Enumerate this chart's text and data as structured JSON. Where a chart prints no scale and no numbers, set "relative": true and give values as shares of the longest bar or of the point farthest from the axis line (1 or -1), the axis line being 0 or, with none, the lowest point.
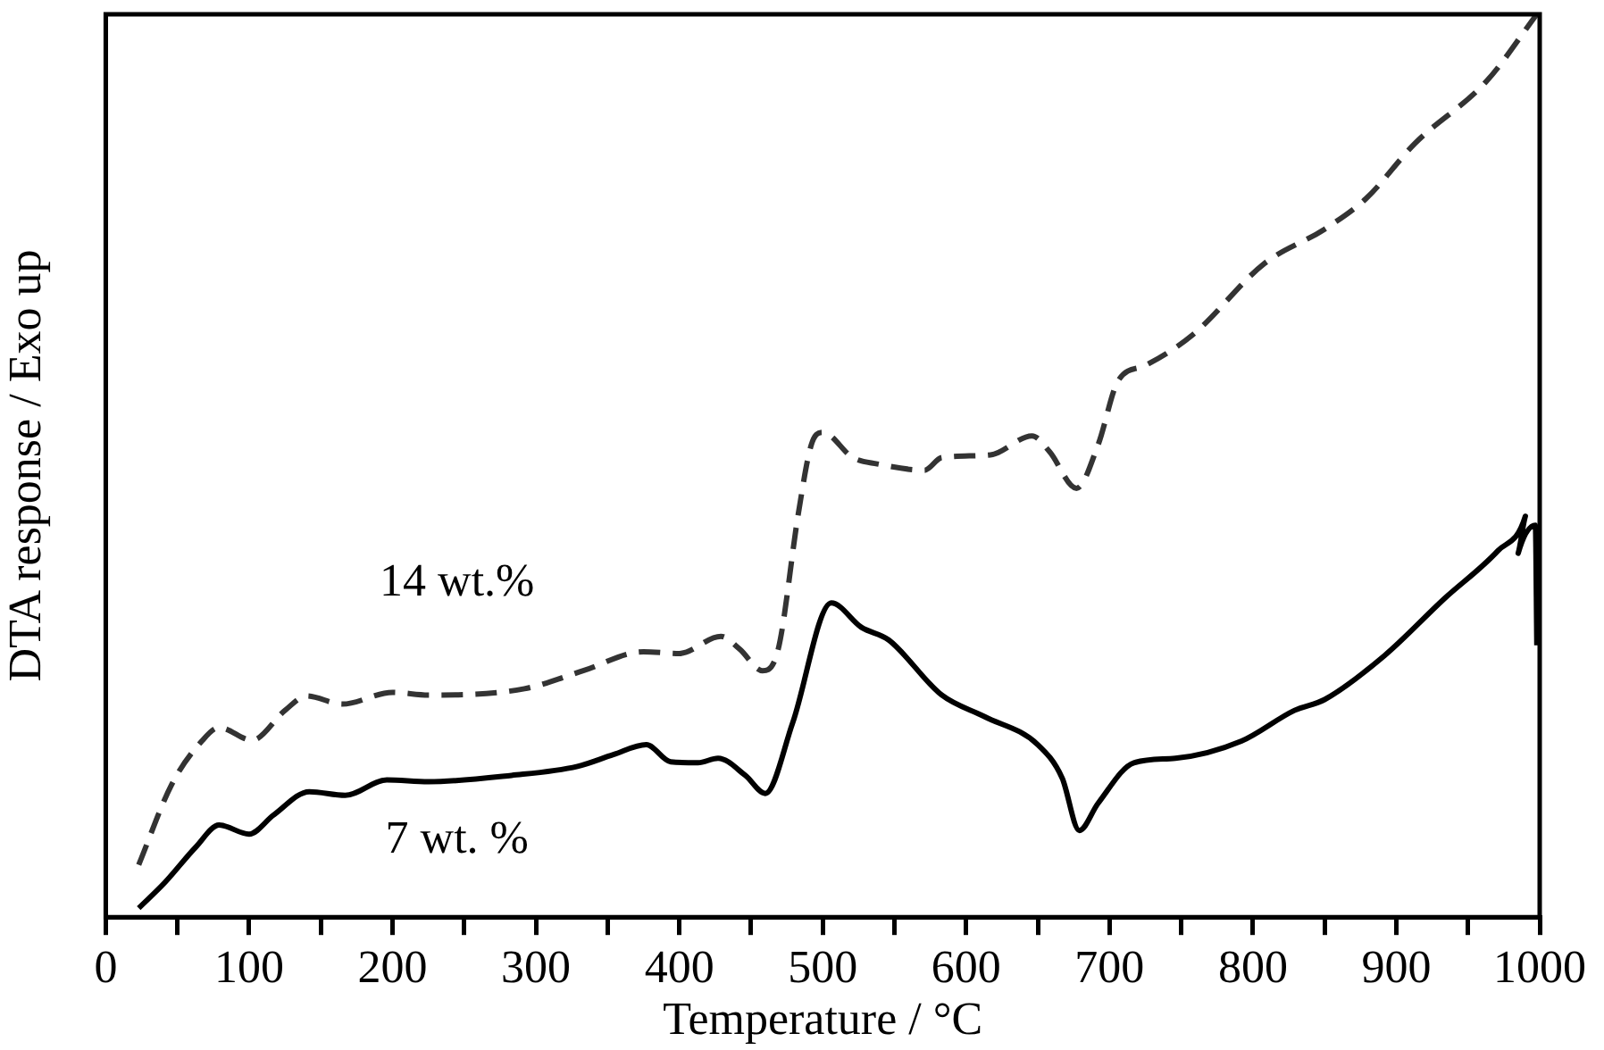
{
  "chart_data": {
    "type": "line",
    "xlabel": "Temperature / °C",
    "ylabel": "DTA response / Exo up",
    "relative": true,
    "xlim": [
      0,
      1000
    ],
    "xticks": [
      0,
      {
        "value": 50,
        "label": null
      },
      100,
      {
        "value": 150,
        "label": null
      },
      200,
      {
        "value": 250,
        "label": null
      },
      300,
      {
        "value": 350,
        "label": null
      },
      400,
      {
        "value": 450,
        "label": null
      },
      500,
      {
        "value": 550,
        "label": null
      },
      600,
      {
        "value": 650,
        "label": null
      },
      700,
      {
        "value": 750,
        "label": null
      },
      800,
      {
        "value": 850,
        "label": null
      },
      900,
      {
        "value": 950,
        "label": null
      },
      1000
    ],
    "grid": false,
    "legend": false,
    "marker": "none",
    "series": [
      {
        "name": "14 wt.%",
        "color": "#333333",
        "line_style": "dashed",
        "x": [
          23,
          46,
          67,
          79,
          102,
          125,
          140,
          165,
          200,
          225,
          292,
          333,
          375,
          400,
          429,
          442,
          458,
          469,
          483,
          492,
          500,
          521,
          538,
          571,
          583,
          617,
          646,
          658,
          677,
          692,
          706,
          725,
          758,
          808,
          850,
          879,
          913,
          963,
          998
        ],
        "values": [
          0.058,
          0.147,
          0.195,
          0.21,
          0.196,
          0.229,
          0.245,
          0.236,
          0.249,
          0.246,
          0.253,
          0.273,
          0.294,
          0.292,
          0.311,
          0.297,
          0.273,
          0.297,
          0.447,
          0.523,
          0.537,
          0.509,
          0.502,
          0.495,
          0.509,
          0.512,
          0.533,
          0.516,
          0.475,
          0.523,
          0.594,
          0.611,
          0.645,
          0.724,
          0.762,
          0.796,
          0.857,
          0.926,
          1.0
        ]
      },
      {
        "name": "7 wt. %",
        "color": "#000000",
        "line_style": "solid",
        "x": [
          23,
          41,
          63,
          79,
          100,
          117,
          142,
          167,
          196,
          225,
          283,
          329,
          354,
          377,
          394,
          413,
          427,
          446,
          460,
          479,
          506,
          527,
          546,
          583,
          613,
          650,
          667,
          679,
          692,
          717,
          746,
          792,
          829,
          850,
          892,
          933,
          971,
          990,
          985,
          997,
          998
        ],
        "values": [
          0.01,
          0.038,
          0.078,
          0.102,
          0.092,
          0.113,
          0.139,
          0.135,
          0.152,
          0.15,
          0.157,
          0.167,
          0.18,
          0.191,
          0.172,
          0.171,
          0.176,
          0.157,
          0.137,
          0.215,
          0.348,
          0.321,
          0.307,
          0.246,
          0.222,
          0.191,
          0.154,
          0.096,
          0.126,
          0.171,
          0.176,
          0.195,
          0.229,
          0.241,
          0.29,
          0.352,
          0.406,
          0.444,
          0.403,
          0.434,
          0.301
        ]
      }
    ]
  }
}
